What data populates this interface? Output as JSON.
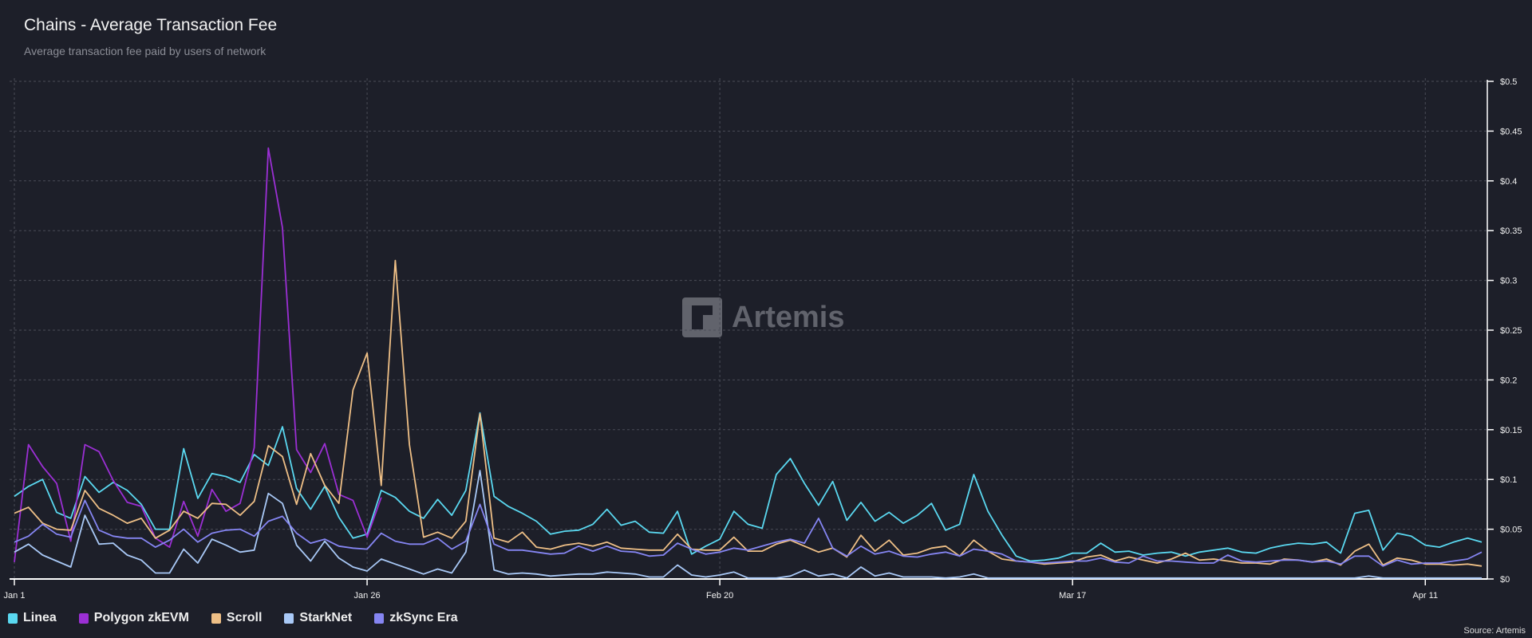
{
  "header": {
    "title": "Chains - Average Transaction Fee",
    "subtitle": "Average transaction fee paid by users of network"
  },
  "watermark": "Artemis",
  "source": "Source: Artemis",
  "chart_data": {
    "type": "line",
    "title": "Chains - Average Transaction Fee",
    "xlabel": "",
    "ylabel": "",
    "x_start": "Jan 1",
    "x_count_days": 105,
    "x_ticks": [
      {
        "label": "Jan 1",
        "day": 0
      },
      {
        "label": "Jan 26",
        "day": 25
      },
      {
        "label": "Feb 20",
        "day": 50
      },
      {
        "label": "Mar 17",
        "day": 75
      },
      {
        "label": "Apr 11",
        "day": 100
      }
    ],
    "y_ticks": [
      "$0",
      "$0.05",
      "$0.1",
      "$0.15",
      "$0.2",
      "$0.25",
      "$0.3",
      "$0.35",
      "$0.4",
      "$0.45",
      "$0.5"
    ],
    "ylim": [
      0,
      0.5
    ],
    "y_axis_side": "right",
    "grid": true,
    "legend_position": "bottom-left",
    "series": [
      {
        "name": "Linea",
        "color": "#5ad8f0",
        "values": [
          0.083,
          0.093,
          0.1,
          0.067,
          0.061,
          0.103,
          0.087,
          0.097,
          0.089,
          0.075,
          0.05,
          0.05,
          0.131,
          0.081,
          0.106,
          0.103,
          0.097,
          0.125,
          0.114,
          0.153,
          0.091,
          0.07,
          0.093,
          0.062,
          0.041,
          0.045,
          0.089,
          0.082,
          0.068,
          0.061,
          0.08,
          0.064,
          0.089,
          0.167,
          0.083,
          0.073,
          0.066,
          0.058,
          0.045,
          0.048,
          0.049,
          0.055,
          0.07,
          0.054,
          0.058,
          0.047,
          0.046,
          0.068,
          0.025,
          0.033,
          0.04,
          0.068,
          0.055,
          0.051,
          0.105,
          0.121,
          0.096,
          0.074,
          0.098,
          0.059,
          0.077,
          0.058,
          0.067,
          0.056,
          0.064,
          0.076,
          0.049,
          0.055,
          0.105,
          0.068,
          0.044,
          0.023,
          0.018,
          0.019,
          0.021,
          0.026,
          0.026,
          0.036,
          0.027,
          0.028,
          0.024,
          0.026,
          0.027,
          0.023,
          0.027,
          0.029,
          0.031,
          0.027,
          0.026,
          0.031,
          0.034,
          0.036,
          0.035,
          0.037,
          0.026,
          0.066,
          0.069,
          0.029,
          0.046,
          0.043,
          0.034,
          0.032,
          0.037,
          0.041,
          0.037
        ]
      },
      {
        "name": "Polygon zkEVM",
        "color": "#9b2fd4",
        "values": [
          0.017,
          0.135,
          0.113,
          0.096,
          0.038,
          0.135,
          0.128,
          0.099,
          0.077,
          0.073,
          0.041,
          0.032,
          0.078,
          0.043,
          0.09,
          0.068,
          0.076,
          0.132,
          0.433,
          0.353,
          0.13,
          0.107,
          0.136,
          0.085,
          0.079,
          0.042,
          0.082
        ]
      },
      {
        "name": "Scroll",
        "color": "#eebf86",
        "values": [
          0.066,
          0.072,
          0.056,
          0.05,
          0.049,
          0.089,
          0.071,
          0.064,
          0.056,
          0.061,
          0.041,
          0.049,
          0.068,
          0.061,
          0.076,
          0.075,
          0.064,
          0.078,
          0.134,
          0.123,
          0.075,
          0.126,
          0.094,
          0.076,
          0.19,
          0.227,
          0.094,
          0.32,
          0.135,
          0.042,
          0.047,
          0.041,
          0.058,
          0.166,
          0.041,
          0.037,
          0.047,
          0.032,
          0.03,
          0.034,
          0.036,
          0.033,
          0.037,
          0.031,
          0.03,
          0.029,
          0.029,
          0.045,
          0.03,
          0.029,
          0.029,
          0.042,
          0.028,
          0.028,
          0.035,
          0.039,
          0.033,
          0.027,
          0.031,
          0.022,
          0.044,
          0.028,
          0.039,
          0.024,
          0.026,
          0.031,
          0.033,
          0.023,
          0.039,
          0.028,
          0.02,
          0.018,
          0.017,
          0.015,
          0.016,
          0.017,
          0.022,
          0.024,
          0.018,
          0.022,
          0.019,
          0.016,
          0.02,
          0.026,
          0.019,
          0.02,
          0.018,
          0.016,
          0.016,
          0.015,
          0.02,
          0.019,
          0.017,
          0.02,
          0.014,
          0.028,
          0.035,
          0.014,
          0.021,
          0.019,
          0.015,
          0.015,
          0.014,
          0.015,
          0.013
        ]
      },
      {
        "name": "StarkNet",
        "color": "#a9c9f7",
        "values": [
          0.027,
          0.035,
          0.024,
          0.018,
          0.012,
          0.064,
          0.035,
          0.036,
          0.024,
          0.019,
          0.006,
          0.006,
          0.03,
          0.016,
          0.04,
          0.034,
          0.027,
          0.029,
          0.086,
          0.076,
          0.034,
          0.018,
          0.038,
          0.021,
          0.012,
          0.008,
          0.02,
          0.015,
          0.01,
          0.005,
          0.01,
          0.006,
          0.027,
          0.109,
          0.009,
          0.005,
          0.006,
          0.005,
          0.003,
          0.004,
          0.005,
          0.005,
          0.007,
          0.006,
          0.005,
          0.002,
          0.002,
          0.014,
          0.004,
          0.002,
          0.004,
          0.007,
          0.001,
          0.001,
          0.001,
          0.003,
          0.009,
          0.003,
          0.005,
          0.001,
          0.012,
          0.003,
          0.006,
          0.002,
          0.002,
          0.002,
          0.001,
          0.002,
          0.005,
          0.001,
          0.001,
          0.001,
          0.001,
          0.001,
          0.001,
          0.001,
          0.001,
          0.001,
          0.001,
          0.001,
          0.001,
          0.001,
          0.001,
          0.001,
          0.001,
          0.001,
          0.001,
          0.001,
          0.001,
          0.001,
          0.001,
          0.001,
          0.001,
          0.001,
          0.001,
          0.001,
          0.003,
          0.001,
          0.001,
          0.001,
          0.001,
          0.001,
          0.001,
          0.001,
          0.001
        ]
      },
      {
        "name": "zkSync Era",
        "color": "#8585f2",
        "values": [
          0.037,
          0.043,
          0.055,
          0.045,
          0.042,
          0.079,
          0.049,
          0.043,
          0.041,
          0.041,
          0.032,
          0.039,
          0.05,
          0.037,
          0.046,
          0.049,
          0.05,
          0.043,
          0.058,
          0.063,
          0.046,
          0.036,
          0.04,
          0.033,
          0.031,
          0.03,
          0.046,
          0.038,
          0.035,
          0.035,
          0.041,
          0.03,
          0.038,
          0.075,
          0.035,
          0.029,
          0.029,
          0.027,
          0.025,
          0.026,
          0.033,
          0.028,
          0.033,
          0.028,
          0.027,
          0.023,
          0.024,
          0.036,
          0.03,
          0.025,
          0.027,
          0.031,
          0.029,
          0.033,
          0.037,
          0.04,
          0.036,
          0.061,
          0.031,
          0.023,
          0.033,
          0.025,
          0.028,
          0.023,
          0.022,
          0.025,
          0.027,
          0.023,
          0.03,
          0.028,
          0.025,
          0.018,
          0.017,
          0.016,
          0.017,
          0.018,
          0.018,
          0.021,
          0.017,
          0.016,
          0.023,
          0.018,
          0.018,
          0.017,
          0.016,
          0.016,
          0.024,
          0.018,
          0.017,
          0.018,
          0.019,
          0.019,
          0.017,
          0.018,
          0.015,
          0.023,
          0.023,
          0.013,
          0.019,
          0.015,
          0.016,
          0.016,
          0.018,
          0.02,
          0.027
        ]
      }
    ]
  }
}
